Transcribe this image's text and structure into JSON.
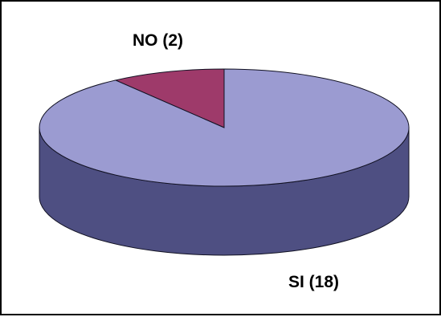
{
  "chart_data": {
    "type": "pie",
    "style": "3d",
    "start": "top",
    "direction": "counterclockwise",
    "slices": [
      {
        "label": "NO (2)",
        "value": 2,
        "color": "#9e3a6a",
        "side_color": "#5a1a3d"
      },
      {
        "label": "SI (18)",
        "value": 18,
        "color": "#9b9bd1",
        "side_color": "#4e4f82"
      }
    ],
    "legend": "none"
  }
}
